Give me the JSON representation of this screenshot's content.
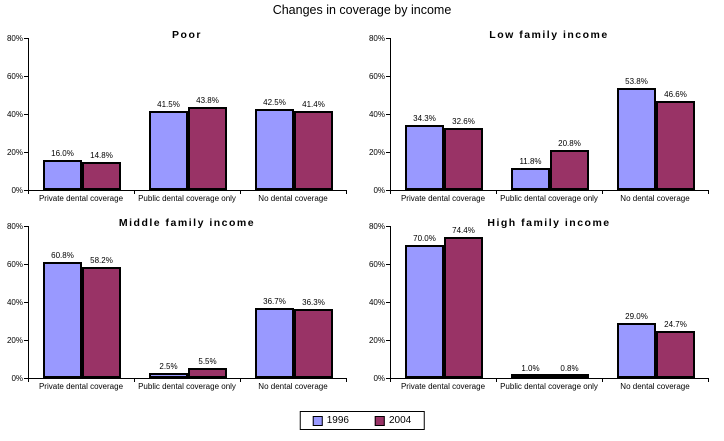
{
  "title": "Changes in coverage by income",
  "colors": {
    "1996": "#9999FF",
    "2004": "#993366",
    "bar_border": "#000000"
  },
  "legend": {
    "items": [
      {
        "label": "1996",
        "color": "#9999FF"
      },
      {
        "label": "2004",
        "color": "#993366"
      }
    ],
    "position": "bottom-center"
  },
  "chart_data": [
    {
      "type": "bar",
      "title": "Poor",
      "categories": [
        "Private dental coverage",
        "Public dental coverage only",
        "No dental coverage"
      ],
      "series": [
        {
          "name": "1996",
          "values": [
            16.0,
            41.5,
            42.5
          ],
          "labels": [
            "16.0%",
            "41.5%",
            "42.5%"
          ]
        },
        {
          "name": "2004",
          "values": [
            14.8,
            43.8,
            41.4
          ],
          "labels": [
            "14.8%",
            "43.8%",
            "41.4%"
          ]
        }
      ],
      "xlabel": "",
      "ylabel": "",
      "ylim": [
        0,
        80
      ],
      "yticks": [
        "0%",
        "20%",
        "40%",
        "60%",
        "80%"
      ],
      "grid": false
    },
    {
      "type": "bar",
      "title": "Low family income",
      "categories": [
        "Private dental coverage",
        "Public dental coverage only",
        "No dental coverage"
      ],
      "series": [
        {
          "name": "1996",
          "values": [
            34.3,
            11.8,
            53.8
          ],
          "labels": [
            "34.3%",
            "11.8%",
            "53.8%"
          ]
        },
        {
          "name": "2004",
          "values": [
            32.6,
            20.8,
            46.6
          ],
          "labels": [
            "32.6%",
            "20.8%",
            "46.6%"
          ]
        }
      ],
      "xlabel": "",
      "ylabel": "",
      "ylim": [
        0,
        80
      ],
      "yticks": [
        "0%",
        "20%",
        "40%",
        "60%",
        "80%"
      ],
      "grid": false
    },
    {
      "type": "bar",
      "title": "Middle family income",
      "categories": [
        "Private dental coverage",
        "Public dental coverage only",
        "No dental coverage"
      ],
      "series": [
        {
          "name": "1996",
          "values": [
            60.8,
            2.5,
            36.7
          ],
          "labels": [
            "60.8%",
            "2.5%",
            "36.7%"
          ]
        },
        {
          "name": "2004",
          "values": [
            58.2,
            5.5,
            36.3
          ],
          "labels": [
            "58.2%",
            "5.5%",
            "36.3%"
          ]
        }
      ],
      "xlabel": "",
      "ylabel": "",
      "ylim": [
        0,
        80
      ],
      "yticks": [
        "0%",
        "20%",
        "40%",
        "60%",
        "80%"
      ],
      "grid": false
    },
    {
      "type": "bar",
      "title": "High family income",
      "categories": [
        "Private dental coverage",
        "Public dental coverage only",
        "No dental coverage"
      ],
      "series": [
        {
          "name": "1996",
          "values": [
            70.0,
            1.0,
            29.0
          ],
          "labels": [
            "70.0%",
            "1.0%",
            "29.0%"
          ]
        },
        {
          "name": "2004",
          "values": [
            74.4,
            0.8,
            24.7
          ],
          "labels": [
            "74.4%",
            "0.8%",
            "24.7%"
          ]
        }
      ],
      "xlabel": "",
      "ylabel": "",
      "ylim": [
        0,
        80
      ],
      "yticks": [
        "0%",
        "20%",
        "40%",
        "60%",
        "80%"
      ],
      "grid": false
    }
  ]
}
